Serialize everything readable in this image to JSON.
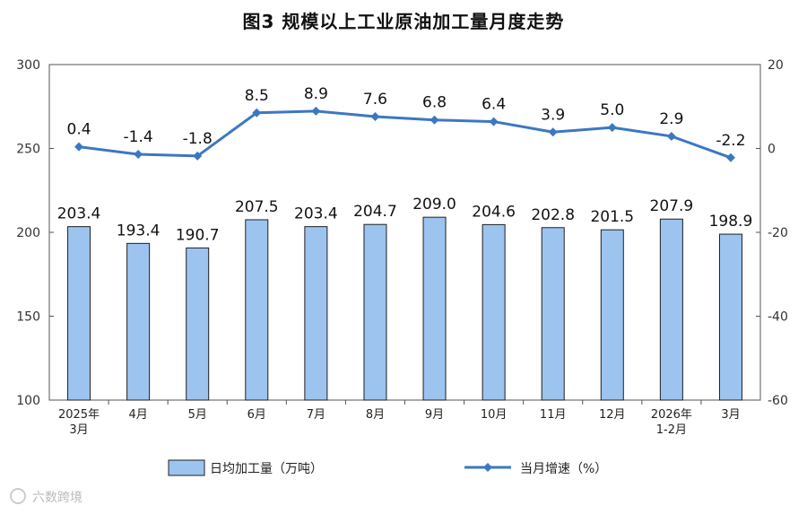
{
  "title": "图3  规模以上工业原油加工量月度走势",
  "chart_data": {
    "type": "bar+line",
    "categories": [
      [
        "2025年",
        "3月"
      ],
      [
        "4月"
      ],
      [
        "5月"
      ],
      [
        "6月"
      ],
      [
        "7月"
      ],
      [
        "8月"
      ],
      [
        "9月"
      ],
      [
        "10月"
      ],
      [
        "11月"
      ],
      [
        "12月"
      ],
      [
        "2026年",
        "1-2月"
      ],
      [
        "3月"
      ]
    ],
    "series": [
      {
        "name": "日均加工量（万吨）",
        "type": "bar",
        "axis": "left",
        "values": [
          203.4,
          193.4,
          190.7,
          207.5,
          203.4,
          204.7,
          209.0,
          204.6,
          202.8,
          201.5,
          207.9,
          198.9
        ],
        "labels": [
          "203.4",
          "193.4",
          "190.7",
          "207.5",
          "203.4",
          "204.7",
          "209.0",
          "204.6",
          "202.8",
          "201.5",
          "207.9",
          "198.9"
        ],
        "color": "#9cc4ef"
      },
      {
        "name": "当月增速（%）",
        "type": "line",
        "axis": "right",
        "values": [
          0.4,
          -1.4,
          -1.8,
          8.5,
          8.9,
          7.6,
          6.8,
          6.4,
          3.9,
          5.0,
          2.9,
          -2.2
        ],
        "labels": [
          "0.4",
          "-1.4",
          "-1.8",
          "8.5",
          "8.9",
          "7.6",
          "6.8",
          "6.4",
          "3.9",
          "5.0",
          "2.9",
          "-2.2"
        ],
        "color": "#3b78c2"
      }
    ],
    "y_left": {
      "min": 100,
      "max": 300,
      "ticks": [
        "100",
        "150",
        "200",
        "250",
        "300"
      ]
    },
    "y_right": {
      "min": -60,
      "max": 20,
      "ticks": [
        "-60",
        "-40",
        "-20",
        "0",
        "20"
      ]
    },
    "grid": false,
    "legend_position": "bottom"
  },
  "watermark": "六数跨境"
}
